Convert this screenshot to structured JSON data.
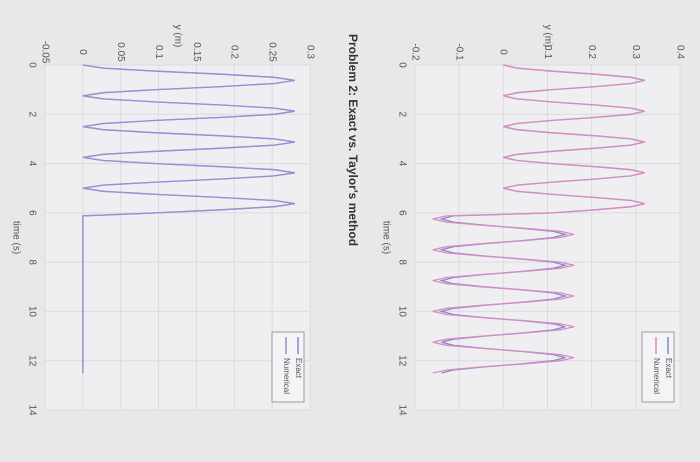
{
  "title": "Problem 2: Exact vs. Taylor's method",
  "chart_data": [
    {
      "type": "line",
      "xlabel": "time (s)",
      "ylabel": "y (m)",
      "xlim": [
        0,
        14
      ],
      "xticks": [
        0,
        2,
        4,
        6,
        8,
        10,
        12,
        14
      ],
      "ylim": [
        -0.2,
        0.4
      ],
      "yticks": [
        -0.2,
        -0.1,
        0,
        0.1,
        0.2,
        0.3,
        0.4
      ],
      "grid": true,
      "legend": "lower right",
      "x": [
        0,
        0.125,
        0.25,
        0.375,
        0.5,
        0.625,
        0.75,
        0.875,
        1,
        1.125,
        1.25,
        1.375,
        1.5,
        1.625,
        1.75,
        1.875,
        2,
        2.125,
        2.25,
        2.375,
        2.5,
        2.625,
        2.75,
        2.875,
        3,
        3.125,
        3.25,
        3.375,
        3.5,
        3.625,
        3.75,
        3.875,
        4,
        4.125,
        4.25,
        4.375,
        4.5,
        4.625,
        4.75,
        4.875,
        5,
        5.125,
        5.25,
        5.375,
        5.5,
        5.625,
        5.75,
        5.875,
        6,
        6.125,
        6.25,
        6.375,
        6.5,
        6.625,
        6.75,
        6.875,
        7,
        7.125,
        7.25,
        7.375,
        7.5,
        7.625,
        7.75,
        7.875,
        8,
        8.125,
        8.25,
        8.375,
        8.5,
        8.625,
        8.75,
        8.875,
        9,
        9.125,
        9.25,
        9.375,
        9.5,
        9.625,
        9.75,
        9.875,
        10,
        10.125,
        10.25,
        10.375,
        10.5,
        10.625,
        10.75,
        10.875,
        11,
        11.125,
        11.25,
        11.375,
        11.5,
        11.625,
        11.75,
        11.875,
        12,
        12.125,
        12.25,
        12.375,
        12.5
      ],
      "series": [
        {
          "name": "Exact",
          "color": "#8b86c9",
          "values": [
            0,
            0.031,
            0.111,
            0.209,
            0.289,
            0.32,
            0.289,
            0.209,
            0.111,
            0.031,
            0,
            0.031,
            0.111,
            0.209,
            0.289,
            0.32,
            0.289,
            0.209,
            0.111,
            0.031,
            0,
            0.031,
            0.111,
            0.209,
            0.289,
            0.32,
            0.289,
            0.209,
            0.111,
            0.031,
            0,
            0.031,
            0.111,
            0.209,
            0.289,
            0.32,
            0.289,
            0.209,
            0.111,
            0.031,
            0,
            0.031,
            0.111,
            0.209,
            0.289,
            0.32,
            0.289,
            0.209,
            0.111,
            -0.113,
            -0.14,
            -0.113,
            -0.043,
            0.043,
            0.113,
            0.14,
            0.113,
            0.043,
            -0.043,
            -0.113,
            -0.14,
            -0.113,
            -0.043,
            0.043,
            0.113,
            0.14,
            0.113,
            0.043,
            -0.043,
            -0.113,
            -0.14,
            -0.113,
            -0.043,
            0.043,
            0.113,
            0.14,
            0.113,
            0.043,
            -0.043,
            -0.113,
            -0.14,
            -0.113,
            -0.043,
            0.043,
            0.113,
            0.14,
            0.113,
            0.043,
            -0.043,
            -0.113,
            -0.14,
            -0.113,
            -0.043,
            0.043,
            0.113,
            0.14,
            0.113,
            0.043,
            -0.043,
            -0.113,
            -0.14
          ]
        },
        {
          "name": "Numerical",
          "color": "#d98cc2",
          "values": [
            0,
            0.031,
            0.111,
            0.209,
            0.289,
            0.32,
            0.289,
            0.209,
            0.111,
            0.031,
            0,
            0.031,
            0.111,
            0.209,
            0.289,
            0.32,
            0.289,
            0.209,
            0.111,
            0.031,
            0,
            0.031,
            0.111,
            0.209,
            0.289,
            0.32,
            0.289,
            0.209,
            0.111,
            0.031,
            0,
            0.031,
            0.111,
            0.209,
            0.289,
            0.32,
            0.289,
            0.209,
            0.111,
            0.031,
            0,
            0.031,
            0.111,
            0.209,
            0.289,
            0.32,
            0.289,
            0.209,
            0.111,
            -0.129,
            -0.16,
            -0.129,
            -0.049,
            0.049,
            0.129,
            0.16,
            0.129,
            0.049,
            -0.049,
            -0.129,
            -0.16,
            -0.129,
            -0.049,
            0.049,
            0.129,
            0.16,
            0.129,
            0.049,
            -0.049,
            -0.129,
            -0.16,
            -0.129,
            -0.049,
            0.049,
            0.129,
            0.16,
            0.129,
            0.049,
            -0.049,
            -0.129,
            -0.16,
            -0.129,
            -0.049,
            0.049,
            0.129,
            0.16,
            0.129,
            0.049,
            -0.049,
            -0.129,
            -0.16,
            -0.129,
            -0.049,
            0.049,
            0.129,
            0.16,
            0.129,
            0.049,
            -0.049,
            -0.129,
            -0.16
          ]
        }
      ]
    },
    {
      "type": "line",
      "xlabel": "time (s)",
      "ylabel": "y (m)",
      "xlim": [
        0,
        14
      ],
      "xticks": [
        0,
        2,
        4,
        6,
        8,
        10,
        12,
        14
      ],
      "ylim": [
        -0.05,
        0.3
      ],
      "yticks": [
        -0.05,
        0,
        0.05,
        0.1,
        0.15,
        0.2,
        0.25,
        0.3
      ],
      "grid": true,
      "legend": "lower right",
      "x": [
        0,
        0.125,
        0.25,
        0.375,
        0.5,
        0.625,
        0.75,
        0.875,
        1,
        1.125,
        1.25,
        1.375,
        1.5,
        1.625,
        1.75,
        1.875,
        2,
        2.125,
        2.25,
        2.375,
        2.5,
        2.625,
        2.75,
        2.875,
        3,
        3.125,
        3.25,
        3.375,
        3.5,
        3.625,
        3.75,
        3.875,
        4,
        4.125,
        4.25,
        4.375,
        4.5,
        4.625,
        4.75,
        4.875,
        5,
        5.125,
        5.25,
        5.375,
        5.5,
        5.625,
        5.75,
        5.875,
        6,
        6.125,
        12.5
      ],
      "series": [
        {
          "name": "Exact",
          "color": "#8b86c9",
          "values": [
            0,
            0.027,
            0.097,
            0.183,
            0.253,
            0.28,
            0.253,
            0.183,
            0.097,
            0.027,
            0,
            0.027,
            0.097,
            0.183,
            0.253,
            0.28,
            0.253,
            0.183,
            0.097,
            0.027,
            0,
            0.027,
            0.097,
            0.183,
            0.253,
            0.28,
            0.253,
            0.183,
            0.097,
            0.027,
            0,
            0.027,
            0.097,
            0.183,
            0.253,
            0.28,
            0.253,
            0.183,
            0.097,
            0.027,
            0,
            0.027,
            0.097,
            0.183,
            0.253,
            0.28,
            0.253,
            0.183,
            0.097,
            0,
            0
          ]
        },
        {
          "name": "Numerical",
          "color": "#9a90cf",
          "values": [
            0,
            0.027,
            0.097,
            0.183,
            0.253,
            0.28,
            0.253,
            0.183,
            0.097,
            0.027,
            0,
            0.027,
            0.097,
            0.183,
            0.253,
            0.28,
            0.253,
            0.183,
            0.097,
            0.027,
            0,
            0.027,
            0.097,
            0.183,
            0.253,
            0.28,
            0.253,
            0.183,
            0.097,
            0.027,
            0,
            0.027,
            0.097,
            0.183,
            0.253,
            0.28,
            0.253,
            0.183,
            0.097,
            0.027,
            0,
            0.027,
            0.097,
            0.183,
            0.253,
            0.28,
            0.253,
            0.183,
            0.097,
            0,
            0
          ]
        }
      ]
    }
  ]
}
